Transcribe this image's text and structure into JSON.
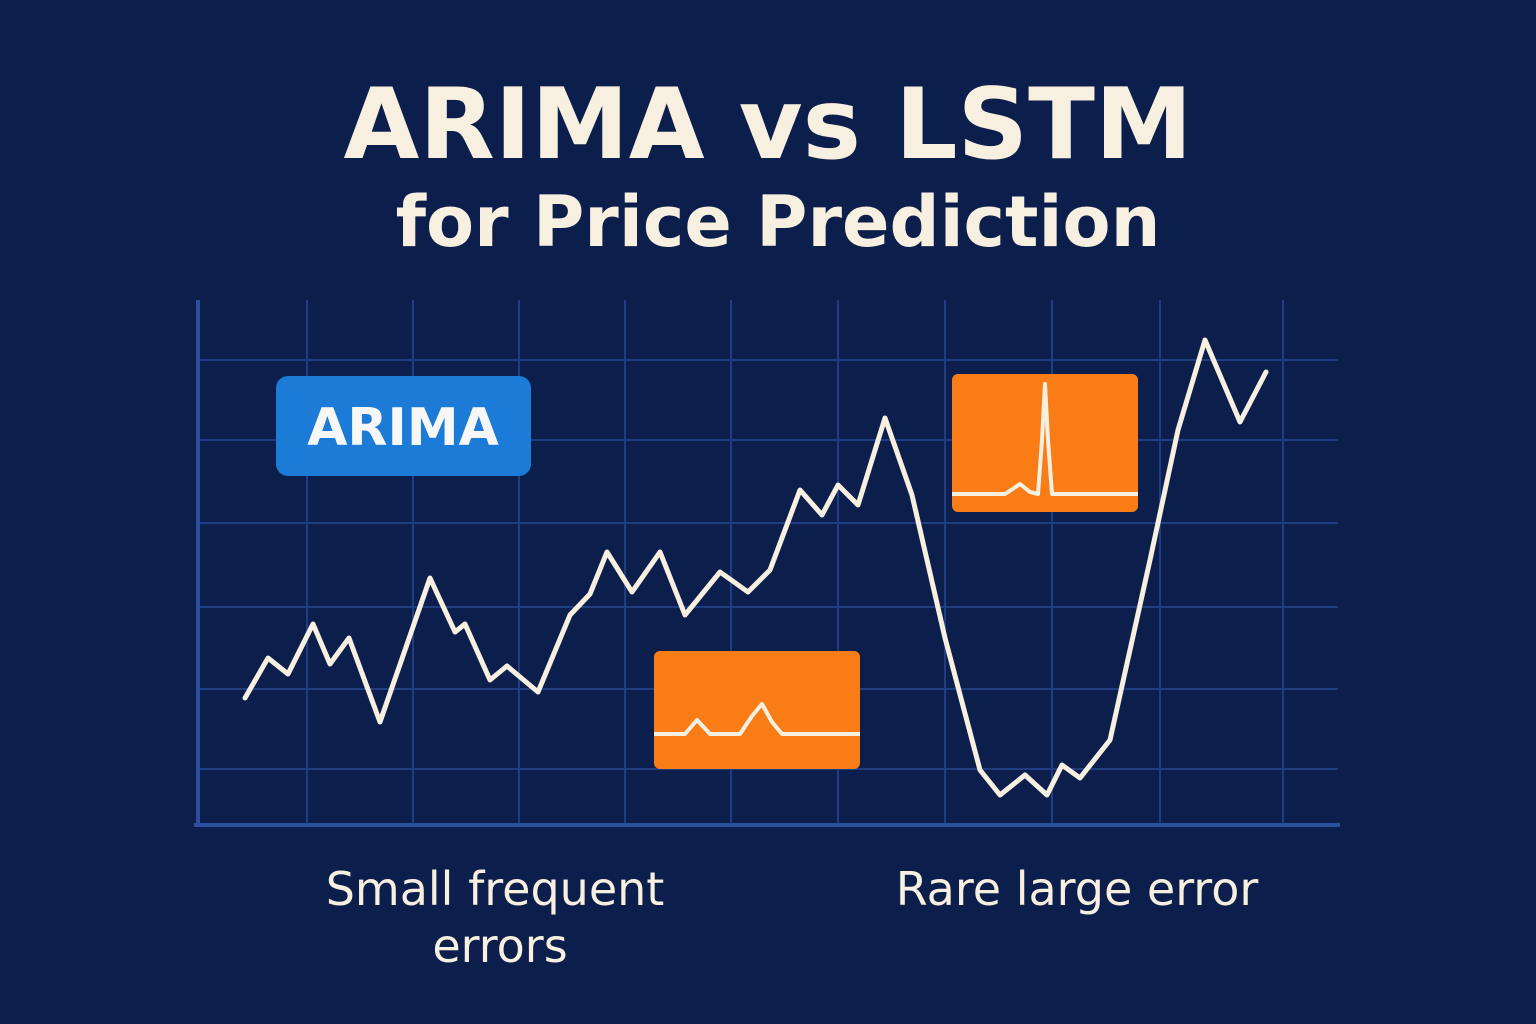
{
  "title": {
    "line1": "ARIMA vs LSTM",
    "line2": "for Price Prediction"
  },
  "badge": "ARIMA",
  "captions": {
    "left": [
      "Small frequent",
      "errors"
    ],
    "right": "Rare large error"
  }
}
